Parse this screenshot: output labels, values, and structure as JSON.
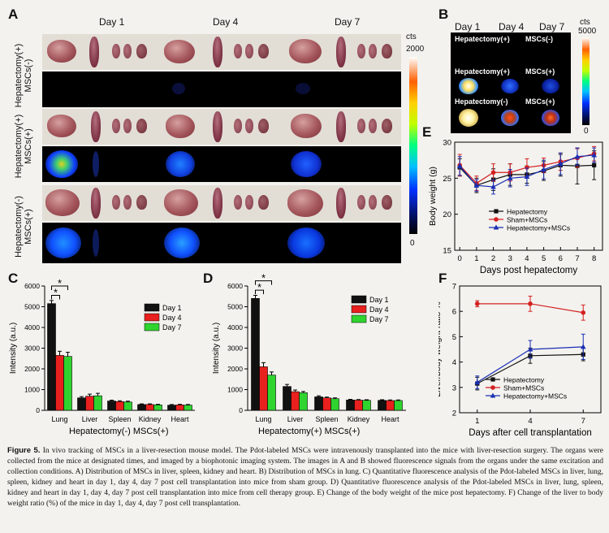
{
  "panel_a": {
    "label": "A",
    "days": [
      "Day 1",
      "Day 4",
      "Day 7"
    ],
    "rows": [
      {
        "line1": "Hepatectomy(+)",
        "line2": "MSCs(-)"
      },
      {
        "line1": "Hepatectomy(+)",
        "line2": "MSCs(+)"
      },
      {
        "line1": "Hepatectomy(-)",
        "line2": "MSCs(+)"
      }
    ],
    "colorbar": {
      "unit": "cts",
      "max": "2000",
      "min": "0"
    }
  },
  "panel_b": {
    "label": "B",
    "days": [
      "Day 1",
      "Day 4",
      "Day 7"
    ],
    "groups": [
      {
        "line1": "Hepatectomy(+)",
        "line2": "MSCs(-)"
      },
      {
        "line1": "Hepatectomy(+)",
        "line2": "MSCs(+)"
      },
      {
        "line1": "Hepatectomy(-)",
        "line2": "MSCs(+)"
      }
    ],
    "colorbar": {
      "unit": "cts",
      "max": "5000",
      "min": "0"
    }
  },
  "chart_data": [
    {
      "panel": "C",
      "type": "bar",
      "ylabel": "Intensity (a.u.)",
      "xlabel": "Hepatectomy(-)   MSCs(+)",
      "categories": [
        "Lung",
        "Liver",
        "Spleen",
        "Kidney",
        "Heart"
      ],
      "ylim": [
        0,
        6000
      ],
      "yticks": [
        0,
        1000,
        2000,
        3000,
        4000,
        5000,
        6000
      ],
      "series": [
        {
          "name": "Day 1",
          "color": "#111111",
          "values": [
            5150,
            600,
            450,
            280,
            250
          ],
          "errors": [
            150,
            60,
            40,
            30,
            30
          ]
        },
        {
          "name": "Day 4",
          "color": "#e8201e",
          "values": [
            2650,
            680,
            420,
            280,
            260
          ],
          "errors": [
            200,
            100,
            40,
            30,
            30
          ]
        },
        {
          "name": "Day 7",
          "color": "#2fd42f",
          "values": [
            2600,
            700,
            400,
            260,
            250
          ],
          "errors": [
            200,
            120,
            40,
            30,
            30
          ]
        }
      ],
      "significance": [
        "*",
        "*"
      ],
      "legend": "right"
    },
    {
      "panel": "D",
      "type": "bar",
      "ylabel": "Intensity (a.u.)",
      "xlabel": "Hepatectomy(+)   MSCs(+)",
      "categories": [
        "Lung",
        "Liver",
        "Spleen",
        "Kidney",
        "Heart"
      ],
      "ylim": [
        0,
        6000
      ],
      "yticks": [
        0,
        1000,
        2000,
        3000,
        4000,
        5000,
        6000
      ],
      "series": [
        {
          "name": "Day 1",
          "color": "#111111",
          "values": [
            5400,
            1150,
            650,
            500,
            480
          ],
          "errors": [
            150,
            100,
            50,
            30,
            30
          ]
        },
        {
          "name": "Day 4",
          "color": "#e8201e",
          "values": [
            2100,
            900,
            600,
            490,
            470
          ],
          "errors": [
            200,
            80,
            40,
            30,
            30
          ]
        },
        {
          "name": "Day 7",
          "color": "#2fd42f",
          "values": [
            1700,
            850,
            560,
            480,
            470
          ],
          "errors": [
            150,
            60,
            40,
            30,
            30
          ]
        }
      ],
      "significance": [
        "*",
        "*"
      ],
      "legend": "right"
    },
    {
      "panel": "E",
      "type": "line",
      "ylabel": "Body weight (g)",
      "xlabel": "Days post hepatectomy",
      "x": [
        0,
        1,
        2,
        3,
        4,
        5,
        6,
        7,
        8
      ],
      "xlim": [
        -0.3,
        8.5
      ],
      "ylim": [
        15,
        30
      ],
      "yticks": [
        15,
        20,
        25,
        30
      ],
      "series": [
        {
          "name": "Hepatectomy",
          "color": "#111111",
          "marker": "square",
          "values": [
            26.5,
            24.0,
            24.8,
            25.5,
            25.5,
            26.0,
            26.8,
            26.7,
            26.8
          ],
          "errors": [
            1.2,
            1.0,
            1.5,
            1.5,
            1.2,
            1.3,
            1.5,
            2.5,
            2.0
          ]
        },
        {
          "name": "Sham+MSCs",
          "color": "#d42020",
          "marker": "circle",
          "values": [
            26.8,
            24.3,
            25.8,
            25.8,
            26.5,
            26.8,
            27.3,
            27.8,
            28.4
          ],
          "errors": [
            1.5,
            1.0,
            1.2,
            1.2,
            1.2,
            1.0,
            1.2,
            1.3,
            1.0
          ]
        },
        {
          "name": "Hepatectomy+MSCs",
          "color": "#1a2fb4",
          "marker": "triangle",
          "values": [
            26.7,
            24.0,
            23.8,
            25.0,
            25.2,
            26.2,
            27.0,
            28.0,
            28.2
          ],
          "errors": [
            1.3,
            0.8,
            1.0,
            1.2,
            1.2,
            1.3,
            1.5,
            1.2,
            1.0
          ]
        }
      ],
      "legend": "bottom-left"
    },
    {
      "panel": "F",
      "type": "line",
      "ylabel": "Liver/body weight ratio %",
      "xlabel": "Days after cell transplantation",
      "x": [
        1,
        4,
        7
      ],
      "xlim": [
        0,
        8
      ],
      "ylim": [
        2,
        7
      ],
      "yticks": [
        2,
        3,
        4,
        5,
        6,
        7
      ],
      "series": [
        {
          "name": "Hepatectomy",
          "color": "#111111",
          "marker": "square",
          "values": [
            3.15,
            4.25,
            4.3
          ],
          "errors": [
            0.25,
            0.3,
            0.25
          ]
        },
        {
          "name": "Sham+MSCs",
          "color": "#d42020",
          "marker": "circle",
          "values": [
            6.3,
            6.3,
            5.95
          ],
          "errors": [
            0.12,
            0.3,
            0.3
          ]
        },
        {
          "name": "Hepatectomy+MSCs",
          "color": "#1a2fb4",
          "marker": "triangle",
          "values": [
            3.2,
            4.5,
            4.6
          ],
          "errors": [
            0.25,
            0.35,
            0.5
          ]
        }
      ],
      "legend": "bottom-left"
    }
  ],
  "caption": {
    "label": "Figure 5.",
    "text": " In vivo tracking of MSCs in a liver-resection mouse model. The Pdot-labeled MSCs were intravenously transplanted into the mice with liver-resection surgery. The organs were collected from the mice at designated times, and imaged by a biophotonic imaging system. The images in A and B showed fluorescence signals from the organs under the same excitation and collection conditions. A) Distribution of MSCs in liver, spleen, kidney and heart. B) Distribution of MSCs in lung. C) Quantitative fluorescence analysis of the Pdot-labeled MSCs in liver, lung, spleen, kidney and heart in day 1, day 4, day 7 post cell transplantation into mice from sham group. D) Quantitative fluorescence analysis of the Pdot-labeled MSCs in liver, lung, spleen, kidney and heart in day 1, day 4, day 7 post cell transplantation into mice from cell therapy group. E) Change of the body weight of the mice post hepatectomy. F) Change of the liver to body weight ratio (%) of the mice in day 1, day 4, day 7 post cell transplantation."
  }
}
